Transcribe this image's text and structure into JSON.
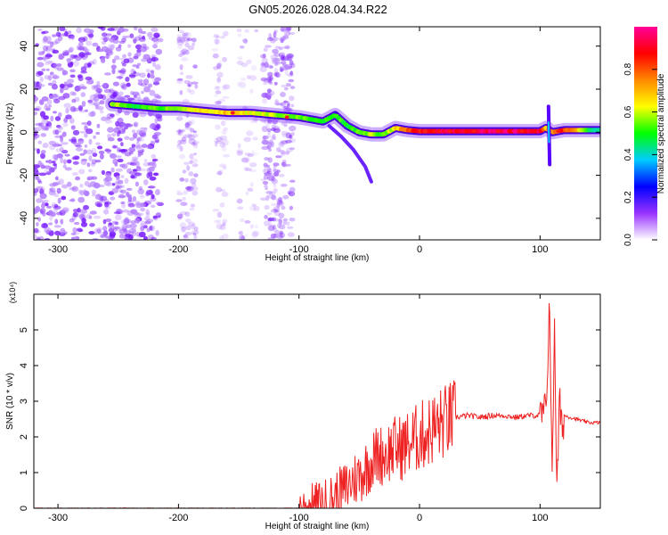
{
  "title": "GN05.2026.028.04.34.R22",
  "chart_data": [
    {
      "type": "heatmap",
      "xlabel": "Height of straight line (km)",
      "ylabel": "Frequency (Hz)",
      "xlim": [
        -320,
        150
      ],
      "ylim": [
        -50,
        49
      ],
      "xticks": [
        -300,
        -200,
        -100,
        0,
        100
      ],
      "yticks": [
        -40,
        -20,
        0,
        20,
        40
      ],
      "grid": false,
      "colorbar": {
        "label": "Normalized spectral amplitude",
        "range": [
          0,
          1
        ],
        "ticks": [
          "0.0",
          "0.2",
          "0.4",
          "0.6",
          "0.8"
        ],
        "colors": [
          "#ffffff",
          "#9933ff",
          "#0000ff",
          "#00ccff",
          "#00ff00",
          "#ffff00",
          "#ff8800",
          "#ff0000",
          "#ff0099"
        ]
      },
      "ridge": {
        "x": [
          -255,
          -235,
          -215,
          -200,
          -180,
          -160,
          -140,
          -120,
          -100,
          -80,
          -70,
          -60,
          -50,
          -40,
          -30,
          -20,
          -10,
          0,
          20,
          40,
          60,
          80,
          90,
          100,
          105,
          110,
          120,
          140,
          150
        ],
        "y": [
          13,
          12,
          11,
          11,
          10,
          9,
          9,
          8,
          7,
          5,
          8,
          3,
          0,
          -1,
          -1,
          2,
          1,
          0.5,
          0.5,
          0.5,
          0.5,
          0.5,
          0.5,
          0.5,
          2,
          0,
          1,
          1,
          1
        ],
        "amplitude": [
          0.6,
          0.5,
          0.55,
          0.6,
          0.65,
          0.7,
          0.65,
          0.6,
          0.55,
          0.5,
          0.55,
          0.5,
          0.55,
          0.6,
          0.55,
          0.65,
          0.8,
          0.9,
          0.95,
          0.95,
          0.95,
          0.95,
          0.95,
          0.9,
          0.7,
          0.8,
          0.9,
          0.5,
          0.4
        ]
      },
      "branch": {
        "x": [
          -75,
          -65,
          -55,
          -45,
          -40
        ],
        "y": [
          3,
          -2,
          -8,
          -16,
          -23
        ]
      }
    },
    {
      "type": "line",
      "xlabel": "Height of straight line (km)",
      "ylabel": "SNR (10 * v/v)",
      "yscale_label": "(x10⁴)",
      "xlim": [
        -320,
        150
      ],
      "ylim": [
        0,
        6
      ],
      "xticks": [
        -300,
        -200,
        -100,
        0,
        100
      ],
      "yticks": [
        0,
        1,
        2,
        3,
        4,
        5
      ],
      "grid": false,
      "color": "#ee2222",
      "x": [
        -320,
        -100,
        -90,
        -80,
        -70,
        -60,
        -55,
        -50,
        -45,
        -40,
        -35,
        -30,
        -25,
        -20,
        -15,
        -10,
        -5,
        0,
        10,
        20,
        30,
        40,
        50,
        60,
        70,
        80,
        90,
        100,
        105,
        108,
        110,
        112,
        114,
        116,
        118,
        120,
        130,
        140,
        150
      ],
      "y": [
        0.0,
        0.0,
        0.05,
        0.1,
        0.3,
        0.6,
        0.8,
        0.9,
        1.1,
        1.3,
        1.5,
        1.5,
        1.6,
        1.7,
        1.7,
        1.8,
        1.9,
        2.0,
        2.2,
        2.4,
        2.55,
        2.6,
        2.55,
        2.6,
        2.6,
        2.55,
        2.6,
        2.6,
        2.7,
        6.0,
        0.5,
        5.4,
        0.3,
        3.0,
        2.2,
        2.6,
        2.5,
        2.4,
        2.4
      ]
    }
  ]
}
